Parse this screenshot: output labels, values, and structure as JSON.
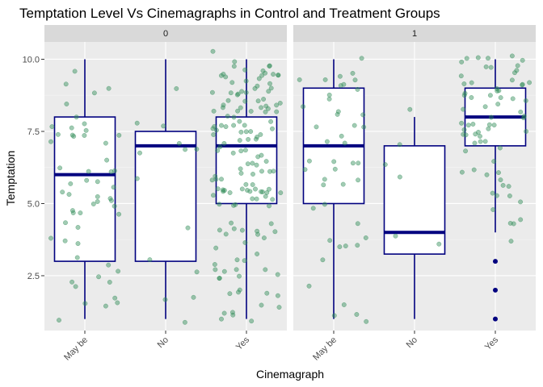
{
  "chart_data": {
    "type": "box",
    "title": "Temptation Level Vs Cinemagraphs in Control and Treatment Groups",
    "xlabel": "Cinemagraph",
    "ylabel": "Temptation",
    "categories": [
      "May be",
      "No",
      "Yes"
    ],
    "ylim": [
      0.6,
      10.6
    ],
    "yticks": [
      2.5,
      5.0,
      7.5,
      10.0
    ],
    "ytick_labels": [
      "2.5",
      "5.0",
      "7.5",
      "10.0"
    ],
    "grid": true,
    "colors": {
      "panel_bg": "#ebebeb",
      "strip_bg": "#d9d9d9",
      "box": "#00007f",
      "points": "#2e8b57",
      "grid_major": "#ffffff"
    },
    "facets": [
      {
        "label": "0",
        "boxes": [
          {
            "category": "May be",
            "min": 1,
            "q1": 3,
            "median": 6,
            "q3": 8,
            "max": 10,
            "outliers": []
          },
          {
            "category": "No",
            "min": 1,
            "q1": 3,
            "median": 7,
            "q3": 7.5,
            "max": 10,
            "outliers": []
          },
          {
            "category": "Yes",
            "min": 1,
            "q1": 5,
            "median": 7,
            "q3": 8,
            "max": 10,
            "outliers": []
          }
        ]
      },
      {
        "label": "1",
        "boxes": [
          {
            "category": "May be",
            "min": 1,
            "q1": 5,
            "median": 7,
            "q3": 9,
            "max": 10,
            "outliers": []
          },
          {
            "category": "No",
            "min": 1,
            "q1": 3.25,
            "median": 4,
            "q3": 7,
            "max": 8,
            "outliers": []
          },
          {
            "category": "Yes",
            "min": 4,
            "q1": 7,
            "median": 8,
            "q3": 9,
            "max": 10,
            "outliers": [
              3,
              2,
              1
            ]
          }
        ]
      }
    ]
  }
}
